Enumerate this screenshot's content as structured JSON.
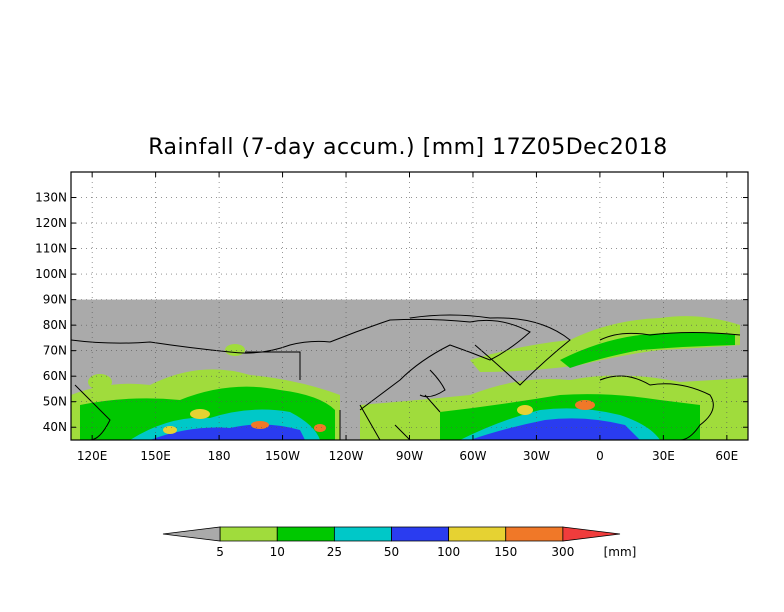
{
  "title": "Rainfall (7-day accum.) [mm] 17Z05Dec2018",
  "map": {
    "lat_labels": [
      "130N",
      "120N",
      "110N",
      "100N",
      "90N",
      "80N",
      "70N",
      "60N",
      "50N",
      "40N"
    ],
    "lon_labels": [
      "120E",
      "150E",
      "180",
      "150W",
      "120W",
      "90W",
      "60W",
      "30W",
      "0",
      "30E",
      "60E"
    ],
    "lat_range": [
      35,
      140
    ],
    "lon_range_deg_east": [
      110,
      430
    ],
    "data_coverage_max_lat": 90,
    "grid": "dotted",
    "colors": {
      "no_data_background": "#ffffff",
      "masked_land_ocean": "#aaaaaa",
      "coastline": "#000000"
    }
  },
  "colorbar": {
    "unit": "[mm]",
    "thresholds": [
      "5",
      "10",
      "25",
      "50",
      "100",
      "150",
      "300"
    ],
    "colors": [
      "#aaaaaa",
      "#a0dc3c",
      "#00c800",
      "#00c8c8",
      "#2a3cf0",
      "#e6d232",
      "#f07828",
      "#f03c3c"
    ]
  }
}
